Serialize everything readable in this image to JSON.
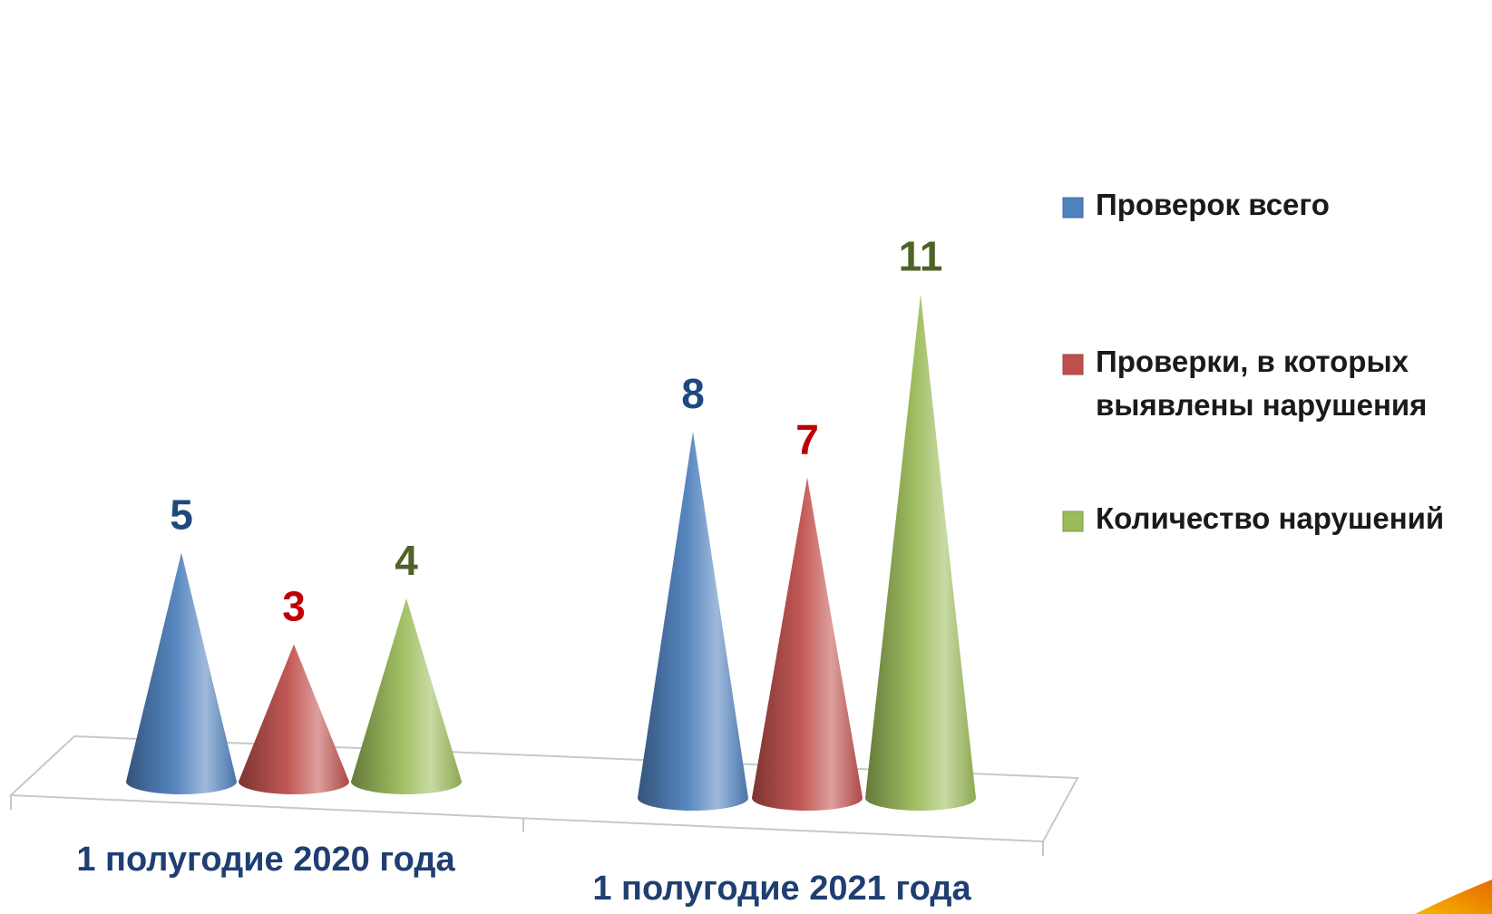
{
  "chart_data": {
    "type": "bar",
    "style": "3d-cone",
    "categories": [
      "1 полугодие 2020 года",
      "1 полугодие 2021 года"
    ],
    "series": [
      {
        "name": "Проверок всего",
        "values": [
          5,
          8
        ],
        "color": "#4f81bd",
        "label_color": "#1f497d"
      },
      {
        "name": "Проверки, в которых выявлены нарушения",
        "values": [
          3,
          7
        ],
        "color": "#c0504d",
        "label_color": "#c00000"
      },
      {
        "name": "Количество нарушений",
        "values": [
          4,
          11
        ],
        "color": "#9bbb59",
        "label_color": "#4f6228"
      }
    ],
    "ylim": [
      0,
      11
    ],
    "legend_position": "right",
    "data_labels": true,
    "grid": false
  }
}
